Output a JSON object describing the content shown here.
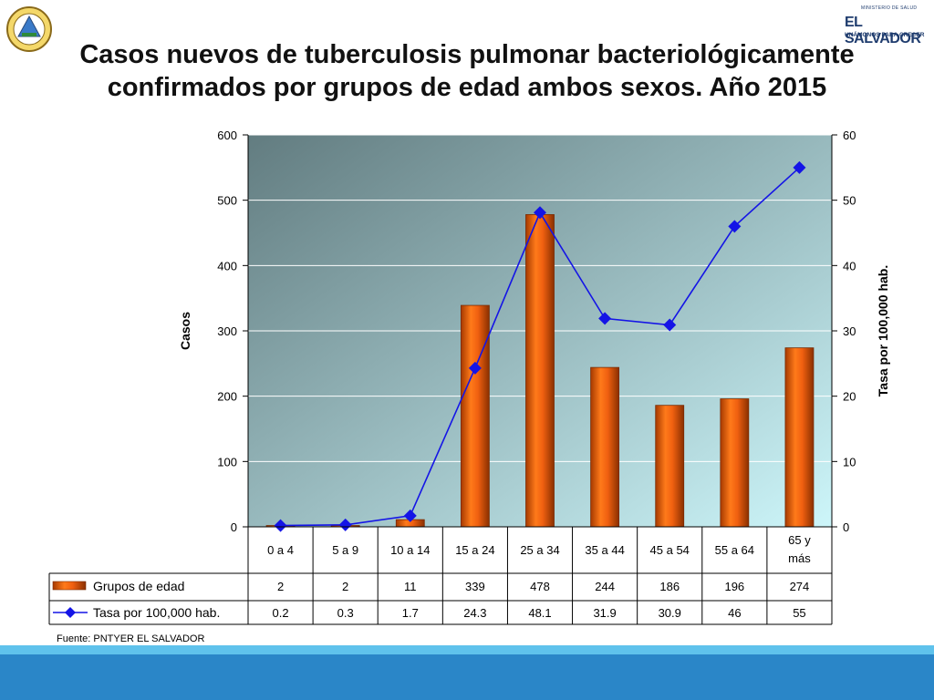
{
  "title": "Casos nuevos de tuberculosis pulmonar bacteriológicamente confirmados por grupos de edad ambos sexos. Año 2015",
  "logo_right": {
    "line1": "MINISTERIO DE SALUD",
    "line2": "EL SALVADOR",
    "line3": "UNÁMONOS PARA CRECER"
  },
  "source": "Fuente: PNTYER EL SALVADOR",
  "colors": {
    "bar": "#e65a06",
    "line": "#1414e6",
    "plot_top_left": "#627c80",
    "plot_bottom_right": "#cdf6fa"
  },
  "chart_data": {
    "type": "bar",
    "categories": [
      "0 a 4",
      "5 a 9",
      "10 a 14",
      "15 a 24",
      "25 a 34",
      "35 a 44",
      "45 a 54",
      "55 a 64",
      "65 y más"
    ],
    "series": [
      {
        "name": "Grupos de edad",
        "type": "bar",
        "axis": "left",
        "values": [
          2,
          2,
          11,
          339,
          478,
          244,
          186,
          196,
          274
        ]
      },
      {
        "name": "Tasa por 100,000 hab.",
        "type": "line",
        "axis": "right",
        "values": [
          0.2,
          0.3,
          1.7,
          24.3,
          48.1,
          31.9,
          30.9,
          46,
          55
        ]
      }
    ],
    "ylabel": "Casos",
    "ylabel_right": "Tasa por 100,000 hab.",
    "ylim": [
      0,
      600
    ],
    "ylim_right": [
      0,
      60
    ],
    "yticks": [
      0,
      100,
      200,
      300,
      400,
      500,
      600
    ],
    "yticks_right": [
      0,
      10,
      20,
      30,
      40,
      50,
      60
    ],
    "grid": true,
    "legend": "data-table"
  }
}
